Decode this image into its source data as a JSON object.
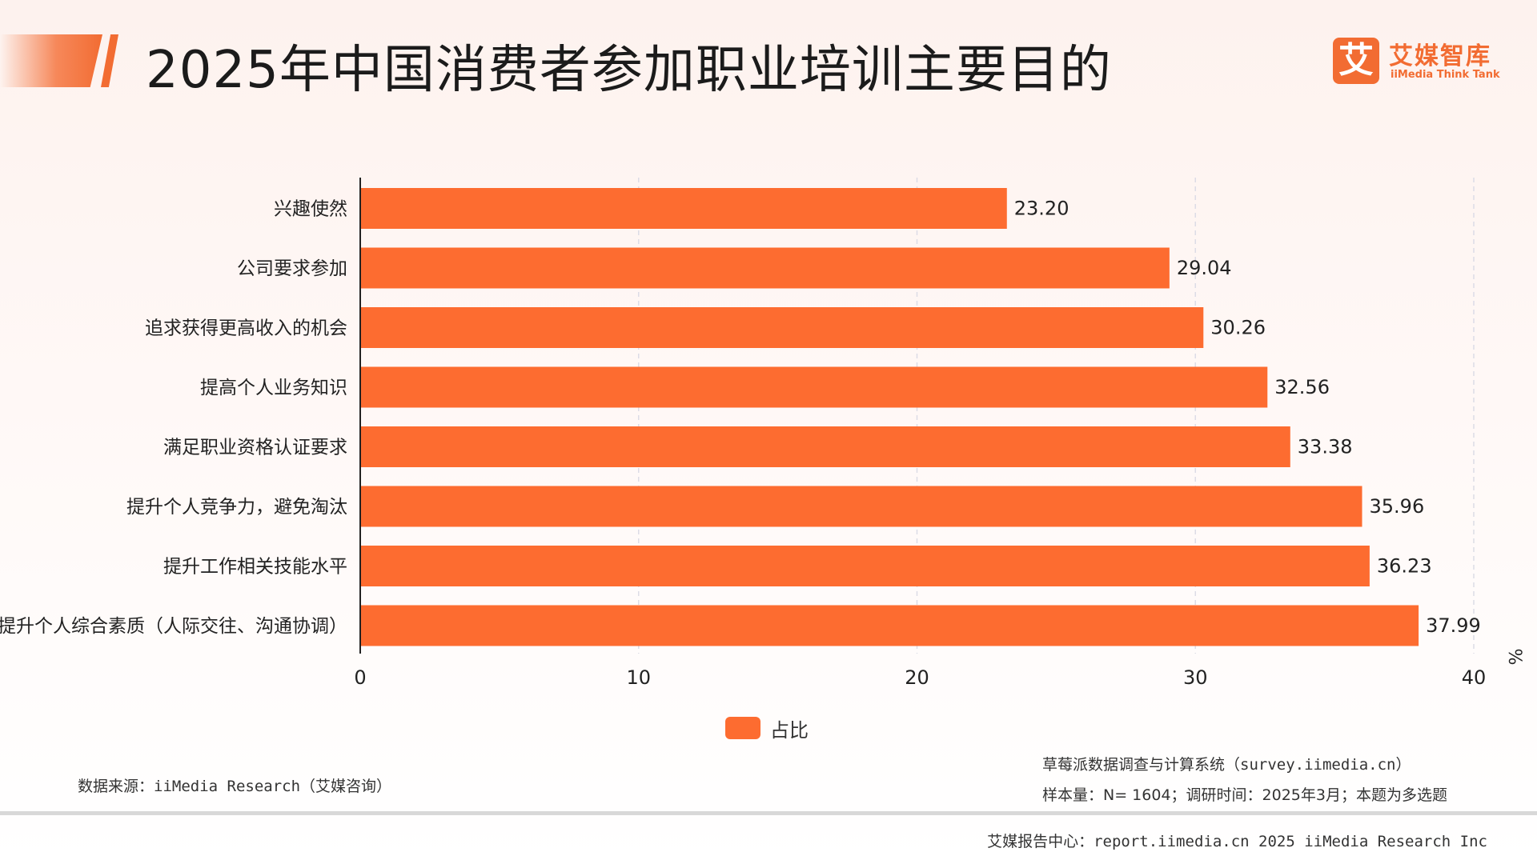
{
  "header": {
    "title": "2025年中国消费者参加职业培训主要目的"
  },
  "logo": {
    "mark": "艾",
    "name": "艾媒智库",
    "subtitle": "iiMedia Think Tank"
  },
  "chart_data": {
    "type": "bar",
    "orientation": "horizontal",
    "categories": [
      "兴趣使然",
      "公司要求参加",
      "追求获得更高收入的机会",
      "提高个人业务知识",
      "满足职业资格认证要求",
      "提升个人竞争力，避免淘汰",
      "提升工作相关技能水平",
      "提升个人综合素质（人际交往、沟通协调）"
    ],
    "series": [
      {
        "name": "占比",
        "values": [
          23.2,
          29.04,
          30.26,
          32.56,
          33.38,
          35.96,
          36.23,
          37.99
        ],
        "value_labels": [
          "23.20",
          "29.04",
          "30.26",
          "32.56",
          "33.38",
          "35.96",
          "36.23",
          "37.99"
        ]
      }
    ],
    "xlim": [
      0,
      40
    ],
    "x_ticks": [
      0,
      10,
      20,
      30,
      40
    ],
    "x_tick_labels": [
      "0",
      "10",
      "20",
      "30",
      "40"
    ],
    "xlabel": "%",
    "grid": true,
    "legend_position": "bottom-center",
    "bar_color": "#fd6c30"
  },
  "legend": {
    "label": "占比",
    "color": "#fd6c30"
  },
  "notes": {
    "source": "数据来源：iiMedia Research（艾媒咨询）",
    "survey_system": "草莓派数据调查与计算系统（survey.iimedia.cn）",
    "sample": "样本量：N= 1604；调研时间：2025年3月；本题为多选题"
  },
  "footer": {
    "text": "艾媒报告中心：report.iimedia.cn   2025 iiMedia Research Inc"
  }
}
